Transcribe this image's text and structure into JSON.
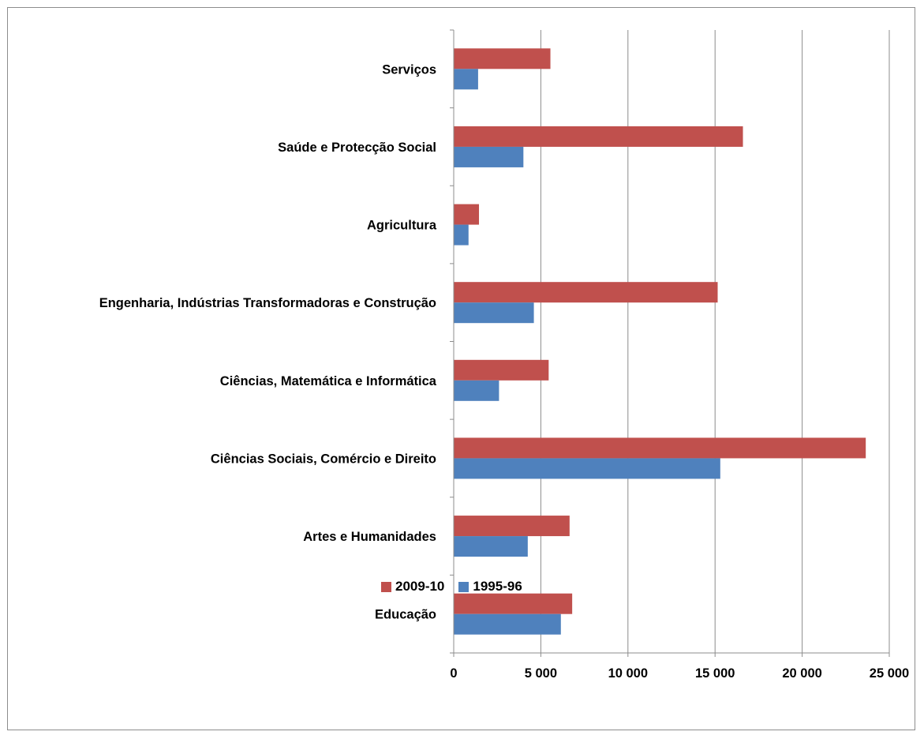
{
  "chart_data": {
    "type": "bar",
    "orientation": "horizontal",
    "categories": [
      "Educação",
      "Artes e Humanidades",
      "Ciências Sociais, Comércio e Direito",
      "Ciências, Matemática e Informática",
      "Engenharia, Indústrias Transformadoras e Construção",
      "Agricultura",
      "Saúde e Protecção Social",
      "Serviços"
    ],
    "series": [
      {
        "name": "2009-10",
        "color": "#c0504d",
        "values": [
          6800,
          6650,
          23650,
          5450,
          15150,
          1450,
          16600,
          5550
        ]
      },
      {
        "name": "1995-96",
        "color": "#4f81bd",
        "values": [
          6150,
          4250,
          15300,
          2600,
          4600,
          850,
          4000,
          1400
        ]
      }
    ],
    "xlim": [
      0,
      25000
    ],
    "xticks": [
      0,
      5000,
      10000,
      15000,
      20000,
      25000
    ],
    "xtick_labels": [
      "0",
      "5 000",
      "10 000",
      "15 000",
      "20 000",
      "25 000"
    ],
    "grid": true,
    "legend_position": "bottom",
    "title": "",
    "xlabel": "",
    "ylabel": ""
  }
}
